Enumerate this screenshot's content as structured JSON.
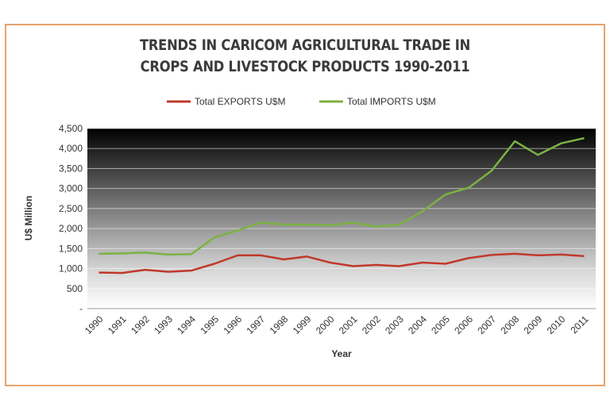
{
  "chart_data": {
    "type": "line",
    "title_lines": [
      "TRENDS IN CARICOM AGRICULTURAL TRADE IN",
      "CROPS AND LIVESTOCK PRODUCTS 1990-2011"
    ],
    "xlabel": "Year",
    "ylabel": "U$ Million",
    "categories": [
      "1990",
      "1991",
      "1992",
      "1993",
      "1994",
      "1995",
      "1996",
      "1997",
      "1998",
      "1999",
      "2000",
      "2001",
      "2002",
      "2003",
      "2004",
      "2005",
      "2006",
      "2007",
      "2008",
      "2009",
      "2010",
      "2011"
    ],
    "y_ticks": [
      "-",
      "500",
      "1,000",
      "1,500",
      "2,000",
      "2,500",
      "3,000",
      "3,500",
      "4,000",
      "4,500"
    ],
    "ylim": [
      0,
      4500
    ],
    "grid": true,
    "legend_position": "top",
    "series": [
      {
        "name": "Total EXPORTS U$M",
        "color": "#c0392b",
        "values": [
          900,
          890,
          970,
          920,
          950,
          1120,
          1330,
          1330,
          1230,
          1300,
          1150,
          1060,
          1090,
          1060,
          1150,
          1120,
          1260,
          1340,
          1370,
          1330,
          1350,
          1310
        ]
      },
      {
        "name": "Total IMPORTS  U$M",
        "color": "#7bb242",
        "values": [
          1370,
          1380,
          1400,
          1350,
          1360,
          1780,
          1950,
          2150,
          2100,
          2100,
          2080,
          2150,
          2050,
          2100,
          2430,
          2850,
          3020,
          3450,
          4180,
          3840,
          4130,
          4260
        ]
      }
    ]
  }
}
